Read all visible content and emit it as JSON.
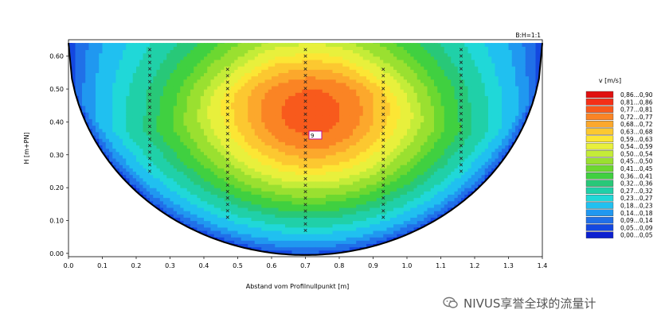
{
  "chart_data": {
    "type": "heatmap",
    "title": "",
    "xlabel": "Abstand vom Profilnullpunkt [m]",
    "ylabel": "H [m+PN]",
    "aspect_ratio_label": "B:H=1:1",
    "xlim": [
      0.0,
      1.4
    ],
    "ylim": [
      -0.01,
      0.65
    ],
    "x_ticks": [
      "0.0",
      "0.1",
      "0.2",
      "0.3",
      "0.4",
      "0.5",
      "0.6",
      "0.7",
      "0.8",
      "0.9",
      "1.0",
      "1.1",
      "1.2",
      "1.3",
      "1.4"
    ],
    "y_ticks": [
      "0.00",
      "0.10",
      "0.20",
      "0.30",
      "0.40",
      "0.50",
      "0.60"
    ],
    "grid": false,
    "legend_title": "v [m/s]",
    "legend_placement": "right",
    "colorbar": [
      {
        "label": "0,86...0,90",
        "color": "#e01010"
      },
      {
        "label": "0,81...0,86",
        "color": "#f43018"
      },
      {
        "label": "0,77...0,81",
        "color": "#f85a1c"
      },
      {
        "label": "0,72...0,77",
        "color": "#fa8424"
      },
      {
        "label": "0,68...0,72",
        "color": "#fca82c"
      },
      {
        "label": "0,63...0,68",
        "color": "#fcc830"
      },
      {
        "label": "0,59...0,63",
        "color": "#fce634"
      },
      {
        "label": "0,54...0,59",
        "color": "#e8f03c"
      },
      {
        "label": "0,50...0,54",
        "color": "#c4ec38"
      },
      {
        "label": "0,45...0,50",
        "color": "#9ae030"
      },
      {
        "label": "0,41...0,45",
        "color": "#6cd830"
      },
      {
        "label": "0,36...0,41",
        "color": "#40d040"
      },
      {
        "label": "0,32...0,36",
        "color": "#28c878"
      },
      {
        "label": "0,27...0,32",
        "color": "#20d0a8"
      },
      {
        "label": "0,23...0,27",
        "color": "#20d8d8"
      },
      {
        "label": "0,18...0,23",
        "color": "#20c0f0"
      },
      {
        "label": "0,14...0,18",
        "color": "#2098f0"
      },
      {
        "label": "0,09...0,14",
        "color": "#2070e8"
      },
      {
        "label": "0,05...0,09",
        "color": "#1448e0"
      },
      {
        "label": "0,00...0,05",
        "color": "#0c20d0"
      }
    ],
    "profile_width": 1.4,
    "water_level": 0.64,
    "velocity_core": {
      "x": 0.72,
      "y": 0.36
    },
    "core_marker_label": "9",
    "measurement_verticals": [
      {
        "x": 0.24,
        "y_top": 0.62,
        "y_bottom": 0.25
      },
      {
        "x": 0.47,
        "y_top": 0.56,
        "y_bottom": 0.11
      },
      {
        "x": 0.7,
        "y_top": 0.62,
        "y_bottom": 0.07
      },
      {
        "x": 0.93,
        "y_top": 0.56,
        "y_bottom": 0.11
      },
      {
        "x": 1.16,
        "y_top": 0.62,
        "y_bottom": 0.25
      }
    ],
    "contour_levels": [
      0.05,
      0.09,
      0.14,
      0.18,
      0.23,
      0.27,
      0.32,
      0.36,
      0.41,
      0.45,
      0.5,
      0.54,
      0.59,
      0.63,
      0.68,
      0.72,
      0.77,
      0.81,
      0.86
    ]
  },
  "watermark": {
    "text": "NIVUS享誉全球的流量计",
    "icon": "wechat-icon",
    "color": "#555555"
  }
}
